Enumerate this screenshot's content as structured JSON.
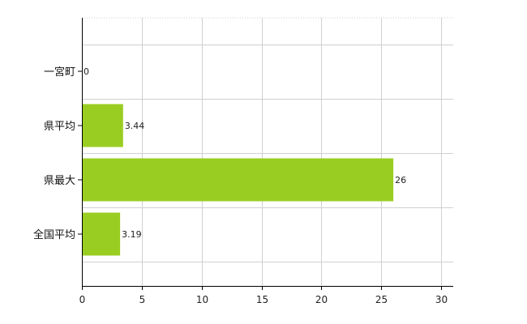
{
  "chart_data": {
    "type": "bar",
    "orientation": "horizontal",
    "categories": [
      "一宮町",
      "県平均",
      "県最大",
      "全国平均"
    ],
    "values": [
      0,
      3.44,
      26,
      3.19
    ],
    "value_labels": [
      "0",
      "3.44",
      "26",
      "3.19"
    ],
    "xlim": [
      0,
      31
    ],
    "x_ticks": [
      0,
      5,
      10,
      15,
      20,
      25,
      30
    ],
    "x_tick_labels": [
      "0",
      "5",
      "10",
      "15",
      "20",
      "25",
      "30"
    ],
    "grid": true,
    "bar_color": "#9ACD22",
    "title": "",
    "xlabel": "",
    "ylabel": ""
  }
}
